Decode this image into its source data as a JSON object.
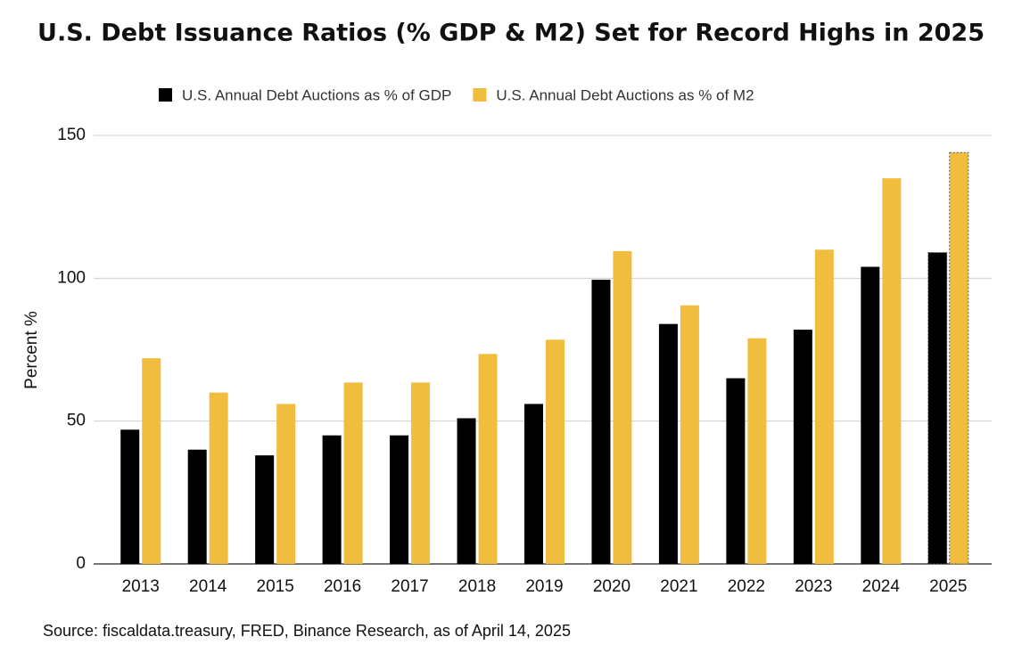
{
  "chart_data": {
    "type": "bar",
    "title": "U.S. Debt Issuance Ratios (% GDP & M2) Set for Record Highs in 2025",
    "y_label": "Percent %",
    "source": "Source: fiscaldata.treasury, FRED, Binance Research, as of April 14, 2025",
    "categories": [
      "2013",
      "2014",
      "2015",
      "2016",
      "2017",
      "2018",
      "2019",
      "2020",
      "2021",
      "2022",
      "2023",
      "2024",
      "2025"
    ],
    "series": [
      {
        "name": "U.S. Annual Debt Auctions as % of GDP",
        "color": "#000000",
        "values": [
          47,
          40,
          38,
          45,
          45,
          51,
          56,
          99.5,
          84,
          65,
          82,
          104,
          109
        ]
      },
      {
        "name": "U.S. Annual Debt Auctions as % of  M2",
        "color": "#f0bd3f",
        "values": [
          72,
          60,
          56,
          63.5,
          63.5,
          73.5,
          78.5,
          109.5,
          90.5,
          79,
          110,
          135,
          144
        ]
      }
    ],
    "ylim": [
      0,
      150
    ],
    "yticks": [
      0,
      50,
      100,
      150
    ],
    "grid": true,
    "legend": "top"
  }
}
